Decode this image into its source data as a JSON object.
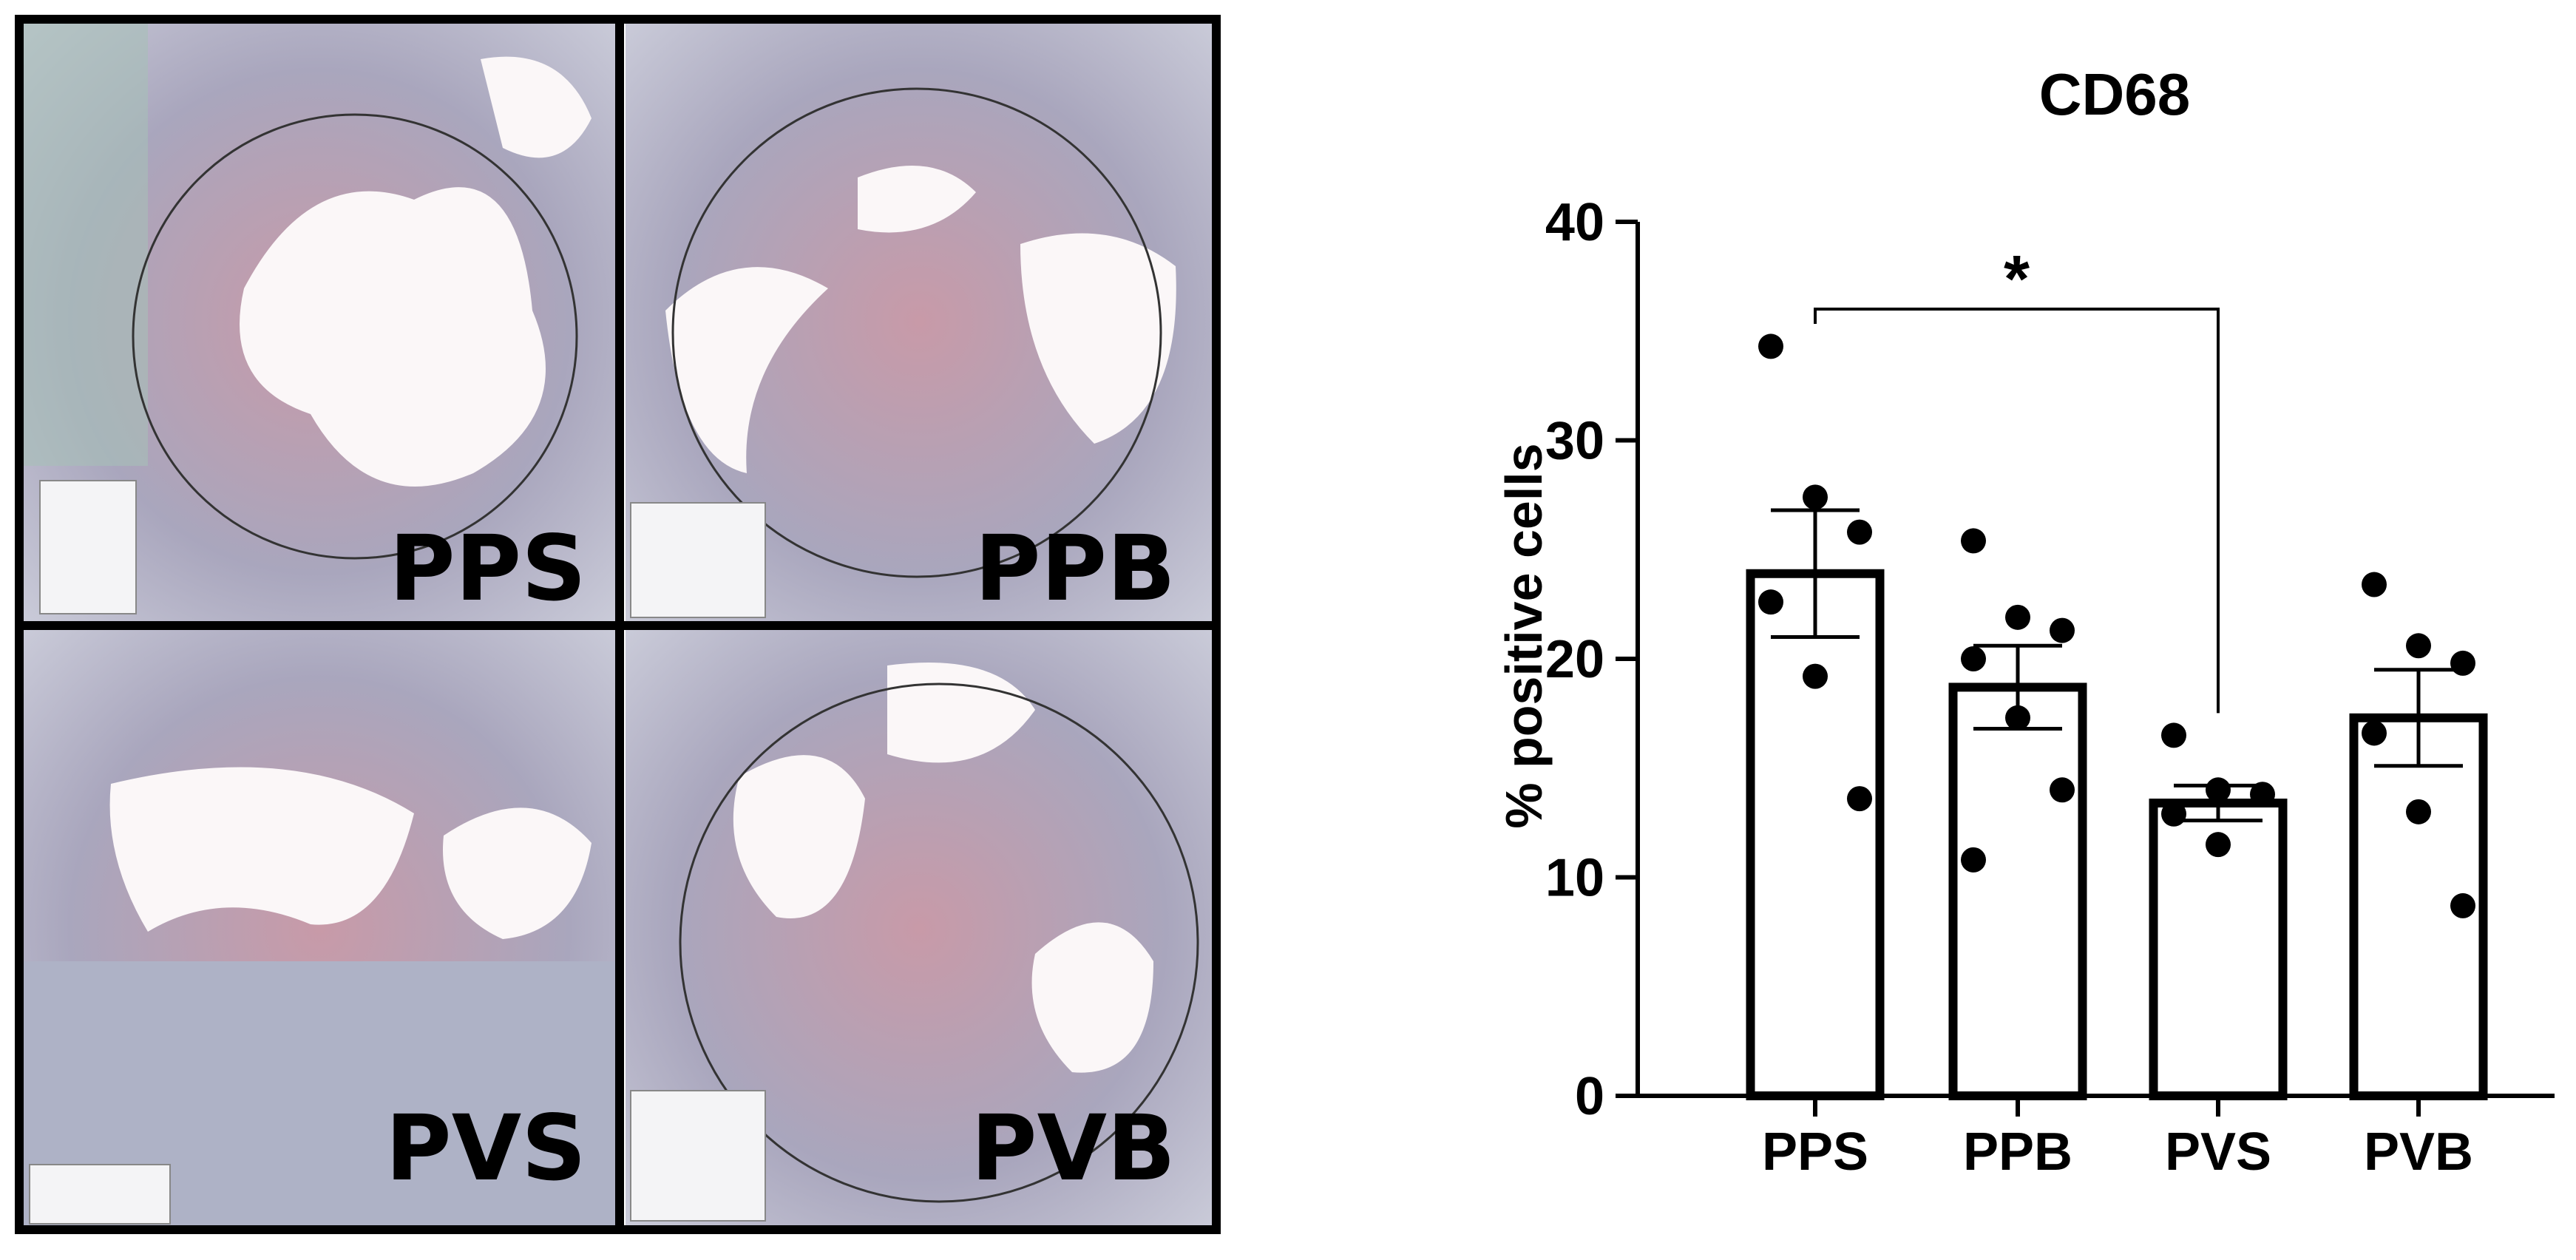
{
  "image_panels": [
    "PPS",
    "PPB",
    "PVS",
    "PVB"
  ],
  "chart_data": {
    "type": "bar",
    "title": "CD68",
    "y_label": "% positive cells",
    "categories": [
      "PPS",
      "PPB",
      "PVS",
      "PVB"
    ],
    "values": [
      23.9,
      18.7,
      13.4,
      17.3
    ],
    "errors": [
      2.9,
      1.9,
      0.8,
      2.2
    ],
    "points": [
      [
        34.3,
        27.4,
        25.8,
        22.6,
        19.2,
        13.6
      ],
      [
        25.4,
        21.9,
        21.3,
        20.0,
        17.3,
        14.0,
        10.8
      ],
      [
        16.5,
        14.0,
        13.8,
        12.9,
        11.5
      ],
      [
        23.4,
        20.6,
        19.8,
        16.6,
        13.0,
        8.7
      ]
    ],
    "color": "#ffffff",
    "ylim": [
      0,
      40
    ],
    "yticks": [
      0,
      10,
      20,
      30,
      40
    ],
    "annotations": [
      "*"
    ]
  }
}
